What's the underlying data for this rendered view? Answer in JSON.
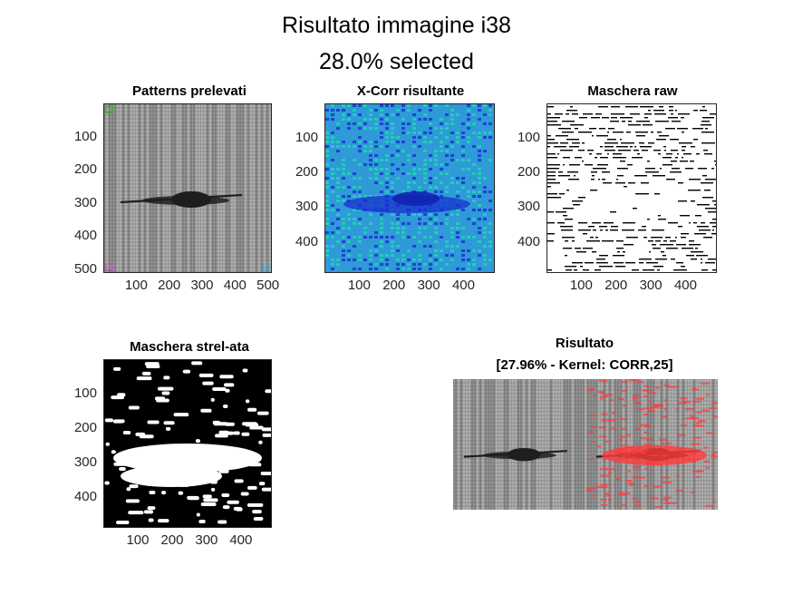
{
  "figure": {
    "title_line1": "Risultato immagine i38",
    "title_line2": "28.0% selected"
  },
  "colors": {
    "text": "#262626",
    "fabric": "#9a9a9a",
    "defect": "#1e1e1e",
    "xcorr_base": "#2e9ad8",
    "xcorr_high": "#22d8b0",
    "xcorr_low": "#1a2ed0",
    "overlay_red": "#ff3b3b",
    "patch_green": "#22aa22",
    "patch_magenta": "#c040c0",
    "patch_cyan": "#20b0e0"
  },
  "chart_data": [
    {
      "type": "heatmap",
      "title": "Patterns prelevati",
      "image_content": "grayscale fabric image with dark elongated defect near y=300",
      "xlim": [
        0,
        512
      ],
      "ylim": [
        0,
        512
      ],
      "xticks": [
        100,
        200,
        300,
        400,
        500
      ],
      "yticks": [
        100,
        200,
        300,
        400,
        500
      ],
      "xtick_labels": [
        "100",
        "200",
        "300",
        "400",
        "500"
      ],
      "ytick_labels": [
        "100",
        "200",
        "300",
        "400",
        "500"
      ],
      "sampled_patterns": [
        {
          "corner": "top-left",
          "color": "green"
        },
        {
          "corner": "bottom-left",
          "color": "magenta"
        },
        {
          "corner": "bottom-right",
          "color": "cyan"
        }
      ]
    },
    {
      "type": "heatmap",
      "title": "X-Corr risultante",
      "colormap": "parula",
      "xlim": [
        0,
        490
      ],
      "ylim": [
        0,
        490
      ],
      "xticks": [
        100,
        200,
        300,
        400
      ],
      "yticks": [
        100,
        200,
        300,
        400
      ],
      "xtick_labels": [
        "100",
        "200",
        "300",
        "400"
      ],
      "ytick_labels": [
        "100",
        "200",
        "300",
        "400"
      ]
    },
    {
      "type": "heatmap",
      "title": "Maschera raw",
      "colormap": "binary",
      "xlim": [
        0,
        490
      ],
      "ylim": [
        0,
        490
      ],
      "xticks": [
        100,
        200,
        300,
        400
      ],
      "yticks": [
        100,
        200,
        300,
        400
      ],
      "xtick_labels": [
        "100",
        "200",
        "300",
        "400"
      ],
      "ytick_labels": [
        "100",
        "200",
        "300",
        "400"
      ]
    },
    {
      "type": "heatmap",
      "title": "Maschera strel-ata",
      "colormap": "binary",
      "xlim": [
        0,
        490
      ],
      "ylim": [
        0,
        490
      ],
      "xticks": [
        100,
        200,
        300,
        400
      ],
      "yticks": [
        100,
        200,
        300,
        400
      ],
      "xtick_labels": [
        "100",
        "200",
        "300",
        "400"
      ],
      "ytick_labels": [
        "100",
        "200",
        "300",
        "400"
      ]
    },
    {
      "type": "heatmap",
      "title_line1": "Risultato",
      "title_line2": "[27.96% - Kernel: CORR,25]",
      "image_content": "side-by-side: original fabric (left) and red mask overlay (right)",
      "axes_visible": false
    }
  ]
}
